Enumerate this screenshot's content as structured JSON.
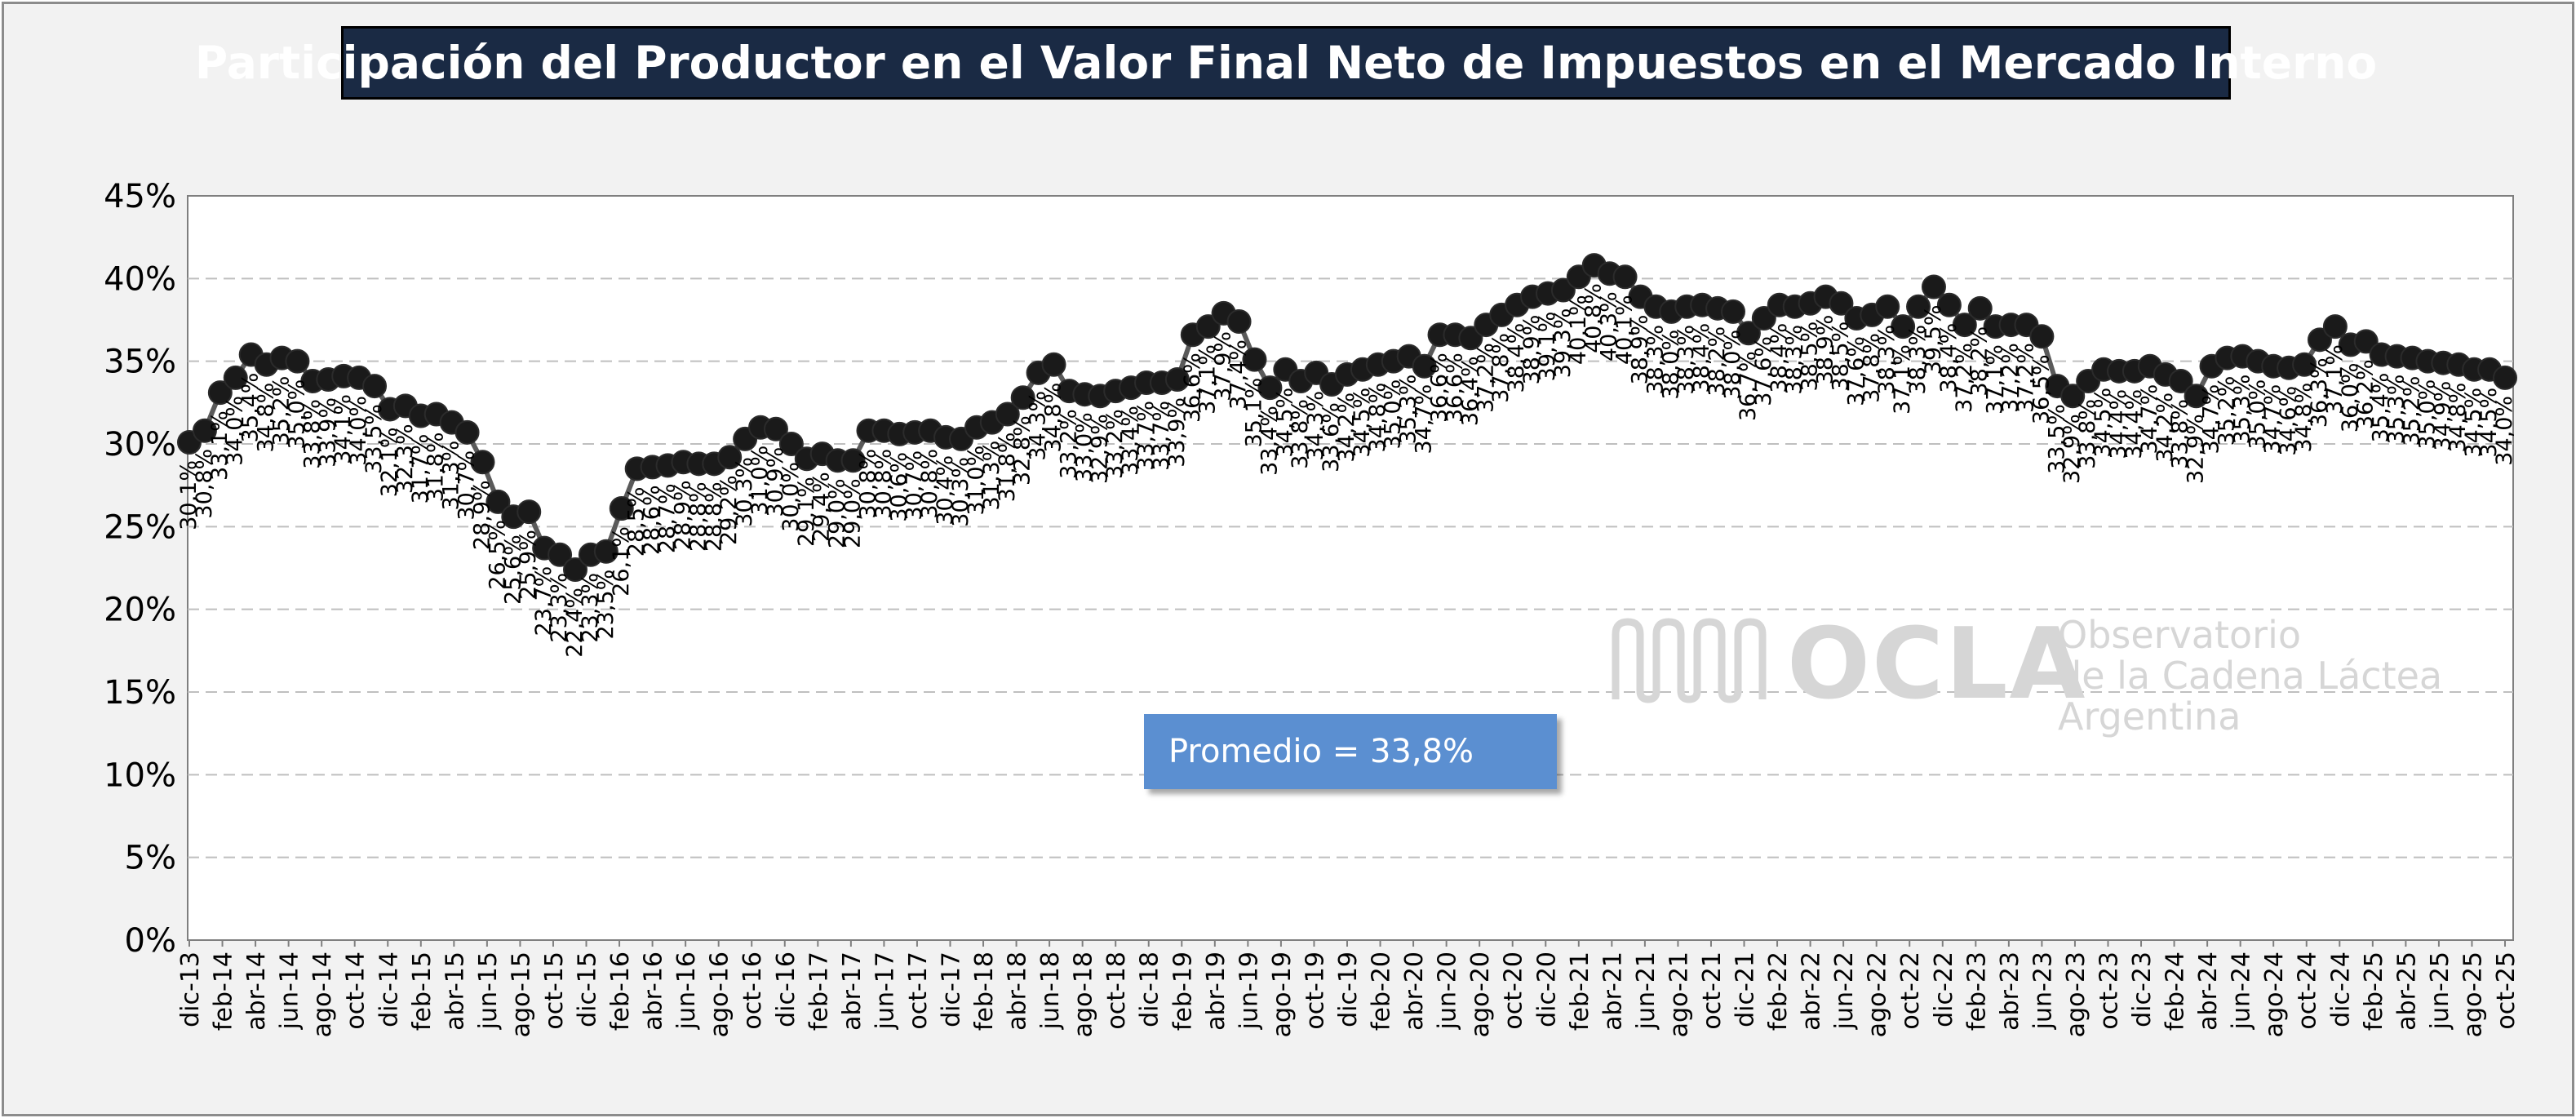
{
  "title": "Participación del Productor en el Valor Final Neto de Impuestos en el Mercado Interno",
  "annotation": "Promedio = 33,8%",
  "logo": {
    "name": "OCLA",
    "line1": "Observatorio",
    "line2": "de la Cadena Láctea",
    "line3": "Argentina"
  },
  "colors": {
    "frame_bg": "#f2f2f2",
    "title_bg": "#1a2a44",
    "series": "#1a1a1a",
    "line": "#5a5a5a",
    "promedio_bg": "#5b8fd1",
    "grid": "#bfbfbf"
  },
  "chart_data": {
    "type": "line",
    "title": "Participación del Productor en el Valor Final Neto de Impuestos en el Mercado Interno",
    "xlabel": "",
    "ylabel": "",
    "ylim": [
      0,
      45
    ],
    "y_ticks": [
      "0%",
      "5%",
      "10%",
      "15%",
      "20%",
      "25%",
      "30%",
      "35%",
      "40%",
      "45%"
    ],
    "grid": "horizontal dashed",
    "legend": "none",
    "x_tick_labels": [
      "dic-13",
      "feb-14",
      "abr-14",
      "jun-14",
      "ago-14",
      "oct-14",
      "dic-14",
      "feb-15",
      "abr-15",
      "jun-15",
      "ago-15",
      "oct-15",
      "dic-15",
      "feb-16",
      "abr-16",
      "jun-16",
      "ago-16",
      "oct-16",
      "dic-16",
      "feb-17",
      "abr-17",
      "jun-17",
      "oct-17",
      "dic-17",
      "feb-18",
      "abr-18",
      "jun-18",
      "ago-18",
      "oct-18",
      "dic-18",
      "feb-19",
      "abr-19",
      "jun-19",
      "ago-19",
      "oct-19",
      "dic-19",
      "feb-20",
      "abr-20",
      "jun-20",
      "ago-20",
      "oct-20",
      "dic-20",
      "feb-21",
      "abr-21",
      "jun-21",
      "ago-21",
      "oct-21",
      "dic-21",
      "feb-22",
      "abr-22",
      "jun-22",
      "ago-22",
      "oct-22",
      "dic-22",
      "feb-23",
      "abr-23",
      "jun-23",
      "ago-23",
      "oct-23",
      "dic-23",
      "feb-24",
      "abr-24",
      "jun-24",
      "ago-24",
      "oct-24",
      "dic-24",
      "feb-25",
      "abr-25",
      "jun-25",
      "ago-25",
      "oct-25"
    ],
    "x_start": "dic-13",
    "x_end": "oct-25",
    "values": [
      30.1,
      30.8,
      33.1,
      34.0,
      35.4,
      34.8,
      35.2,
      35.0,
      33.8,
      33.9,
      34.1,
      34.0,
      33.5,
      32.1,
      32.3,
      31.7,
      31.8,
      31.3,
      30.7,
      28.9,
      26.5,
      25.6,
      25.9,
      23.7,
      23.3,
      22.4,
      23.3,
      23.5,
      26.1,
      28.5,
      28.6,
      28.7,
      28.9,
      28.8,
      28.8,
      29.2,
      30.3,
      31.0,
      30.9,
      30.0,
      29.1,
      29.4,
      29.0,
      29.0,
      30.8,
      30.8,
      30.6,
      30.7,
      30.8,
      30.4,
      30.3,
      31.0,
      31.3,
      31.8,
      32.8,
      34.3,
      34.8,
      33.2,
      33.0,
      32.9,
      33.2,
      33.4,
      33.7,
      33.7,
      33.9,
      36.6,
      37.1,
      37.9,
      37.4,
      35.1,
      33.4,
      34.5,
      33.8,
      34.3,
      33.6,
      34.2,
      34.5,
      34.8,
      35.0,
      35.3,
      34.7,
      36.6,
      36.6,
      36.4,
      37.2,
      37.8,
      38.4,
      38.9,
      39.1,
      39.3,
      40.1,
      40.8,
      40.3,
      40.1,
      38.9,
      38.3,
      38.0,
      38.3,
      38.4,
      38.2,
      38.0,
      36.7,
      37.6,
      38.4,
      38.3,
      38.5,
      38.9,
      38.5,
      37.6,
      37.8,
      38.3,
      37.1,
      38.3,
      39.5,
      38.4,
      37.2,
      38.2,
      37.1,
      37.2,
      37.2,
      36.5,
      33.5,
      32.9,
      33.8,
      34.5,
      34.4,
      34.4,
      34.7,
      34.2,
      33.8,
      32.9,
      34.7,
      35.2,
      35.3,
      35.0,
      34.7,
      34.6,
      34.8,
      36.3,
      37.1,
      36.0,
      36.2,
      35.4,
      35.3,
      35.2,
      35.0,
      34.9,
      34.8,
      34.5,
      34.5,
      34.0
    ],
    "data_labels": [
      "30,1%",
      "30,8%",
      "33,1%",
      "34,0%",
      "35,4%",
      "34,8%",
      "35,2%",
      "35,0%",
      "33,8%",
      "33,9%",
      "34,1%",
      "34,0%",
      "33,5%",
      "32,1%",
      "32,3%",
      "31,7%",
      "31,8%",
      "31,3%",
      "30,7%",
      "28,9%",
      "26,5%",
      "25,6%",
      "25,9%",
      "23,7%",
      "23,3%",
      "22,4%",
      "23,3%",
      "23,5%",
      "26,1%",
      "28,5%",
      "28,6%",
      "28,7%",
      "28,9%",
      "28,8%",
      "28,8%",
      "29,2%",
      "30,3%",
      "31,0%",
      "30,9%",
      "30,0%",
      "29,1%",
      "29,4%",
      "29,0%",
      "29,0%",
      "30,8%",
      "30,8%",
      "30,6%",
      "30,7%",
      "30,8%",
      "30,4%",
      "30,3%",
      "31,0%",
      "31,3%",
      "31,8%",
      "32,8%",
      "34,3%",
      "34,8%",
      "33,2%",
      "33,0%",
      "32,9%",
      "33,2%",
      "33,4%",
      "33,7%",
      "33,7%",
      "33,9%",
      "36,6%",
      "37,1%",
      "37,9%",
      "37,4%",
      "35,1%",
      "33,4%",
      "34,5%",
      "33,8%",
      "34,3%",
      "33,6%",
      "34,2%",
      "34,5%",
      "34,8%",
      "35,0%",
      "35,3%",
      "34,7%",
      "36,6%",
      "36,6%",
      "36,4%",
      "37,2%",
      "37,8%",
      "38,4%",
      "38,9%",
      "39,1%",
      "39,3%",
      "40,1%",
      "40,8%",
      "40,3%",
      "40,1%",
      "38,9%",
      "38,3%",
      "38,0%",
      "38,3%",
      "38,4%",
      "38,2%",
      "38,0%",
      "36,7%",
      "37,6%",
      "38,4%",
      "38,3%",
      "38,5%",
      "38,9%",
      "38,5%",
      "37,6%",
      "37,8%",
      "38,3%",
      "37,1%",
      "38,3%",
      "39,5%",
      "38,4%",
      "37,2%",
      "38,2%",
      "37,1%",
      "37,2%",
      "37,2%",
      "36,5%",
      "33,5%",
      "32,9%",
      "33,8%",
      "34,5%",
      "34,4%",
      "34,4%",
      "34,7%",
      "34,2%",
      "33,8%",
      "32,9%",
      "34,7%",
      "35,2%",
      "35,3%",
      "35,0%",
      "34,7%",
      "34,6%",
      "34,8%",
      "36,3%",
      "37,1%",
      "36,0%",
      "36,2%",
      "35,4%",
      "35,3%",
      "35,2%",
      "35,0%",
      "34,9%",
      "34,8%",
      "34,5%",
      "34,5%",
      "34,0%"
    ]
  }
}
